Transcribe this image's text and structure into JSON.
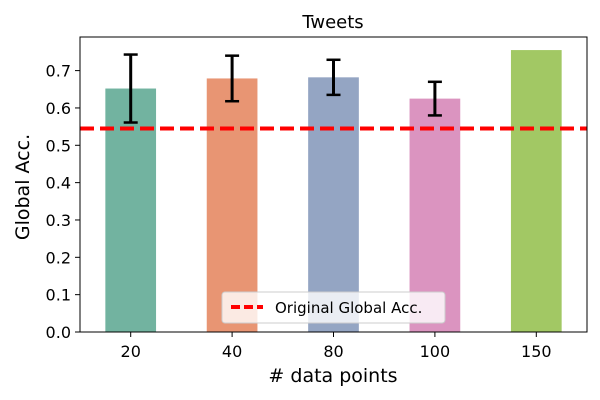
{
  "chart_data": {
    "type": "bar",
    "title": "Tweets",
    "xlabel": "# data points",
    "ylabel": "Global Acc.",
    "categories": [
      "20",
      "40",
      "80",
      "100",
      "150"
    ],
    "values": [
      0.652,
      0.679,
      0.682,
      0.625,
      0.755
    ],
    "error": [
      0.091,
      0.061,
      0.047,
      0.045,
      null
    ],
    "ylim": [
      0,
      0.79
    ],
    "yticks": [
      "0.0",
      "0.1",
      "0.2",
      "0.3",
      "0.4",
      "0.5",
      "0.6",
      "0.7"
    ],
    "bar_colors": [
      "#72b3a0",
      "#e89573",
      "#94a5c3",
      "#db94c0",
      "#a2c864"
    ],
    "reference_line": {
      "value": 0.545,
      "label": "Original Global Acc.",
      "color": "#ff0000",
      "style": "dashed"
    },
    "legend_position": "bottom-center",
    "grid": false
  }
}
